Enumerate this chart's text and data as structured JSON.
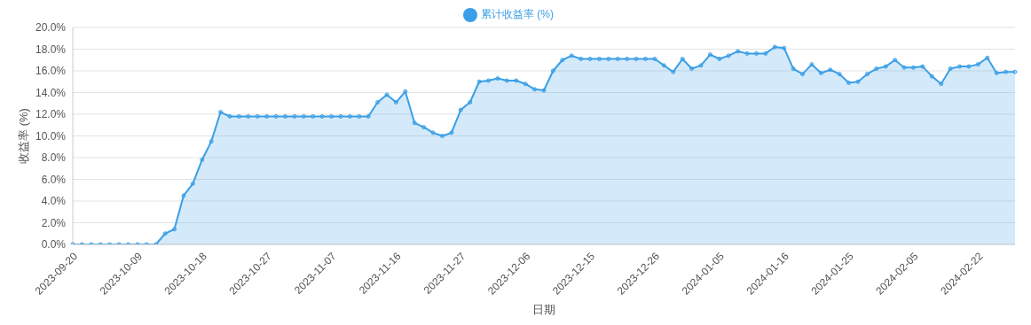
{
  "chart_data": {
    "type": "area",
    "xlabel": "日期",
    "ylabel": "收益率 (%)",
    "categories": [
      "2023-09-20",
      null,
      null,
      null,
      null,
      null,
      null,
      "2023-10-09",
      null,
      null,
      null,
      null,
      null,
      null,
      "2023-10-18",
      null,
      null,
      null,
      null,
      null,
      null,
      "2023-10-27",
      null,
      null,
      null,
      null,
      null,
      null,
      "2023-11-07",
      null,
      null,
      null,
      null,
      null,
      null,
      "2023-11-16",
      null,
      null,
      null,
      null,
      null,
      null,
      "2023-11-27",
      null,
      null,
      null,
      null,
      null,
      null,
      "2023-12-06",
      null,
      null,
      null,
      null,
      null,
      null,
      "2023-12-15",
      null,
      null,
      null,
      null,
      null,
      null,
      "2023-12-26",
      null,
      null,
      null,
      null,
      null,
      null,
      "2024-01-05",
      null,
      null,
      null,
      null,
      null,
      null,
      "2024-01-16",
      null,
      null,
      null,
      null,
      null,
      null,
      "2024-01-25",
      null,
      null,
      null,
      null,
      null,
      null,
      "2024-02-05",
      null,
      null,
      null,
      null,
      null,
      null,
      "2024-02-22",
      null,
      null,
      null,
      null
    ],
    "series": [
      {
        "name": "累计收益率 (%)",
        "color": "#3a9fe6",
        "values": [
          0,
          0,
          0,
          0,
          0,
          0,
          0,
          0,
          0,
          0,
          1.0,
          1.4,
          4.5,
          5.6,
          7.8,
          9.5,
          12.2,
          11.8,
          11.8,
          11.8,
          11.8,
          11.8,
          11.8,
          11.8,
          11.8,
          11.8,
          11.8,
          11.8,
          11.8,
          11.8,
          11.8,
          11.8,
          11.8,
          13.1,
          13.8,
          13.1,
          14.1,
          11.2,
          10.8,
          10.3,
          10.0,
          10.3,
          12.4,
          13.1,
          15.0,
          15.1,
          15.3,
          15.1,
          15.1,
          14.8,
          14.3,
          14.2,
          16.0,
          17.0,
          17.4,
          17.1,
          17.1,
          17.1,
          17.1,
          17.1,
          17.1,
          17.1,
          17.1,
          17.1,
          16.5,
          15.9,
          17.1,
          16.2,
          16.5,
          17.5,
          17.1,
          17.4,
          17.8,
          17.6,
          17.6,
          17.6,
          18.2,
          18.1,
          16.2,
          15.7,
          16.6,
          15.8,
          16.1,
          15.7,
          14.9,
          15.0,
          15.7,
          16.2,
          16.4,
          17.0,
          16.3,
          16.3,
          16.4,
          15.5,
          14.8,
          16.2,
          16.4,
          16.4,
          16.6,
          17.2,
          15.8,
          15.9,
          15.9
        ]
      }
    ],
    "ylim": [
      0,
      20
    ],
    "yticks": [
      {
        "value": 0,
        "label": "0.0%"
      },
      {
        "value": 2,
        "label": "2.0%"
      },
      {
        "value": 4,
        "label": "4.0%"
      },
      {
        "value": 6,
        "label": "6.0%"
      },
      {
        "value": 8,
        "label": "8.0%"
      },
      {
        "value": 10,
        "label": "10.0%"
      },
      {
        "value": 12,
        "label": "12.0%"
      },
      {
        "value": 14,
        "label": "14.0%"
      },
      {
        "value": 16,
        "label": "16.0%"
      },
      {
        "value": 18,
        "label": "18.0%"
      },
      {
        "value": 20,
        "label": "20.0%"
      }
    ],
    "grid": "y",
    "legend": "top",
    "marker": "circle"
  }
}
